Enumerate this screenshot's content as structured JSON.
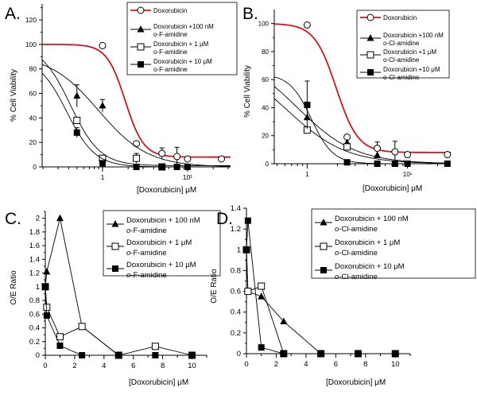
{
  "chart_data": [
    {
      "panel": "A.",
      "type": "line",
      "xscale": "log",
      "xlabel": "[Doxorubicin] μM",
      "ylabel": "% Cell Viability",
      "xlim": [
        0.195,
        32
      ],
      "ylim": [
        0,
        133
      ],
      "yticks": [
        0,
        20,
        40,
        60,
        80,
        100,
        120
      ],
      "xticks": [
        {
          "v": 1,
          "label": "1"
        },
        {
          "v": 10,
          "label": "10¹"
        }
      ],
      "legend_position": "top-right",
      "series": [
        {
          "name": "Doxorubicin",
          "sub": "",
          "marker": "open-circle",
          "color": "#d4141c",
          "x": [
            1,
            2.5,
            5,
            7.5,
            10,
            25
          ],
          "y": [
            99,
            19,
            11,
            8.5,
            6.5,
            6.5
          ],
          "err": [
            0,
            0,
            4.5,
            7.5,
            0,
            0
          ],
          "fit": {
            "top": 100,
            "bottom": 8,
            "ic50": 1.85,
            "hill": 4
          }
        },
        {
          "name": "Doxorubicin +100 nM",
          "sub": "o-F-amidine",
          "marker": "filled-triangle",
          "color": "#000000",
          "x": [
            0.5,
            1
          ],
          "y": [
            58,
            50
          ],
          "err": [
            9,
            5
          ],
          "fit": {
            "top": 92,
            "bottom": 0,
            "ic50": 0.9,
            "hill": 1.5
          }
        },
        {
          "name": "Doxorubicin + 1 μM",
          "sub": "o-F-amidine",
          "marker": "open-square",
          "color": "#000000",
          "x": [
            0.5,
            1,
            2.5,
            5
          ],
          "y": [
            38,
            7,
            7,
            0
          ],
          "err": [
            0,
            0,
            4,
            0
          ],
          "fit": {
            "top": 100,
            "bottom": 1,
            "ic50": 0.42,
            "hill": 2.5
          }
        },
        {
          "name": "Doxorubicin + 10 μM",
          "sub": "o-F-amidine",
          "marker": "filled-square",
          "color": "#000000",
          "x": [
            0.5,
            1,
            2.5,
            5,
            7.5,
            10
          ],
          "y": [
            28,
            3,
            0,
            0,
            0,
            0
          ],
          "err": [
            4,
            0,
            0,
            0,
            0,
            0
          ],
          "fit": {
            "top": 90,
            "bottom": 0,
            "ic50": 0.38,
            "hill": 2.6
          }
        }
      ]
    },
    {
      "panel": "B.",
      "type": "line",
      "xscale": "log",
      "xlabel": "[Doxorubicin] μM",
      "ylabel": "% Cell Viability",
      "xlim": [
        0.47,
        27
      ],
      "ylim": [
        0,
        110
      ],
      "yticks": [
        0,
        20,
        40,
        60,
        80,
        100
      ],
      "xticks": [
        {
          "v": 1,
          "label": "1"
        },
        {
          "v": 10,
          "label": "10¹"
        }
      ],
      "legend_position": "top-right",
      "series": [
        {
          "name": "Doxorubicin",
          "sub": "",
          "marker": "open-circle",
          "color": "#d4141c",
          "x": [
            1,
            2.5,
            5,
            7.5,
            10,
            25
          ],
          "y": [
            99,
            19,
            11,
            8.5,
            6.5,
            6.5
          ],
          "err": [
            0,
            0,
            4.5,
            7.5,
            0,
            0
          ],
          "fit": {
            "top": 100,
            "bottom": 8,
            "ic50": 1.95,
            "hill": 4
          }
        },
        {
          "name": "Doxorubicin +100 nM",
          "sub": "o-Cl-amidine",
          "marker": "filled-triangle",
          "color": "#000000",
          "x": [
            1,
            2.5,
            5
          ],
          "y": [
            33,
            15,
            6
          ],
          "err": [
            0,
            0,
            0
          ],
          "fit": {
            "top": 80,
            "bottom": 0,
            "ic50": 0.8,
            "hill": 1.5
          }
        },
        {
          "name": "Doxorubicin +1 μM",
          "sub": "o-Cl-amidine",
          "marker": "open-square",
          "color": "#000000",
          "x": [
            1,
            2.5
          ],
          "y": [
            24,
            12
          ],
          "err": [
            0,
            0
          ],
          "fit": {
            "top": 75,
            "bottom": 0,
            "ic50": 0.65,
            "hill": 1.5
          }
        },
        {
          "name": "Doxorubicin +10 μM",
          "sub": "o-Cl-amidine",
          "marker": "filled-square",
          "color": "#000000",
          "x": [
            1,
            2.5,
            5,
            7.5,
            10,
            25
          ],
          "y": [
            42,
            1,
            0,
            0,
            0,
            0
          ],
          "err": [
            17,
            0,
            0,
            0,
            0,
            0
          ],
          "fit": {
            "top": 64,
            "bottom": 0,
            "ic50": 1.1,
            "hill": 4
          }
        }
      ]
    },
    {
      "panel": "C.",
      "type": "line",
      "xscale": "linear",
      "xlabel": "[Doxorubicin] μM",
      "ylabel": "O/E Ratio",
      "xlim": [
        0,
        11
      ],
      "ylim": [
        0,
        2.1
      ],
      "yticks": [
        0,
        0.2,
        0.4,
        0.6,
        0.8,
        1,
        1.2,
        1.4,
        1.6,
        1.8,
        2
      ],
      "xticks": [
        {
          "v": 0,
          "label": "0"
        },
        {
          "v": 2,
          "label": "2"
        },
        {
          "v": 4,
          "label": "4"
        },
        {
          "v": 6,
          "label": "6"
        },
        {
          "v": 8,
          "label": "8"
        },
        {
          "v": 10,
          "label": "10"
        }
      ],
      "legend_position": "top-right",
      "series": [
        {
          "name": "Doxorubicin + 100 nM",
          "sub_prefix": "o",
          "sub": "-F-amidine",
          "marker": "filled-triangle",
          "color": "#000000",
          "x": [
            0,
            0.1,
            1,
            2.5,
            5,
            10
          ],
          "y": [
            1,
            1.22,
            2.0,
            0.42,
            0,
            0
          ]
        },
        {
          "name": "Doxorubicin + 1 μM",
          "sub_prefix": "o",
          "sub": "-F-amidine",
          "marker": "open-square",
          "color": "#000000",
          "x": [
            0,
            0.1,
            1,
            2.5,
            5,
            7.5,
            10
          ],
          "y": [
            1,
            0.7,
            0.27,
            0.42,
            0,
            0.13,
            0
          ]
        },
        {
          "name": "Doxorubicin + 10 μM",
          "sub_prefix": "o",
          "sub": "-F-amidine",
          "marker": "filled-square",
          "color": "#000000",
          "x": [
            0,
            0.1,
            1,
            2.5,
            5,
            7.5,
            10
          ],
          "y": [
            1,
            0.58,
            0.14,
            0,
            0,
            0,
            0
          ]
        }
      ]
    },
    {
      "panel": "D.",
      "type": "line",
      "xscale": "linear",
      "xlabel": "[Doxorubicin]  μM",
      "ylabel": "O/E Ratio",
      "xlim": [
        0,
        11
      ],
      "ylim": [
        0,
        1.4
      ],
      "yticks": [
        0,
        0.2,
        0.4,
        0.6,
        0.8,
        1,
        1.2,
        1.4
      ],
      "xticks": [
        {
          "v": 0,
          "label": "0"
        },
        {
          "v": 2,
          "label": "2"
        },
        {
          "v": 4,
          "label": "4"
        },
        {
          "v": 6,
          "label": "6"
        },
        {
          "v": 8,
          "label": "8"
        },
        {
          "v": 10,
          "label": "10"
        }
      ],
      "legend_position": "top-right",
      "series": [
        {
          "name": "Doxorubicin + 100 nM",
          "sub_prefix": "o",
          "sub": "-Cl-amidine",
          "marker": "filled-triangle",
          "color": "#000000",
          "x": [
            0,
            0.1,
            1,
            2.5,
            5,
            7.5,
            10
          ],
          "y": [
            1,
            0.6,
            0.55,
            0.31,
            0,
            0,
            0
          ]
        },
        {
          "name": "Doxorubicin + 1 μM",
          "sub_prefix": "o",
          "sub": "-Cl-amidine",
          "marker": "open-square",
          "color": "#000000",
          "x": [
            0,
            0.1,
            1,
            2.5,
            5,
            7.5,
            10
          ],
          "y": [
            1,
            0.6,
            0.65,
            0,
            0,
            0,
            0
          ]
        },
        {
          "name": "Doxorubicin + 10 μM",
          "sub_prefix": "o",
          "sub": "-Cl-amidine",
          "marker": "filled-square",
          "color": "#000000",
          "x": [
            0,
            0.1,
            1,
            2.5,
            5,
            7.5,
            10
          ],
          "y": [
            1,
            1.28,
            0.06,
            0,
            0,
            0,
            0
          ]
        }
      ]
    }
  ]
}
